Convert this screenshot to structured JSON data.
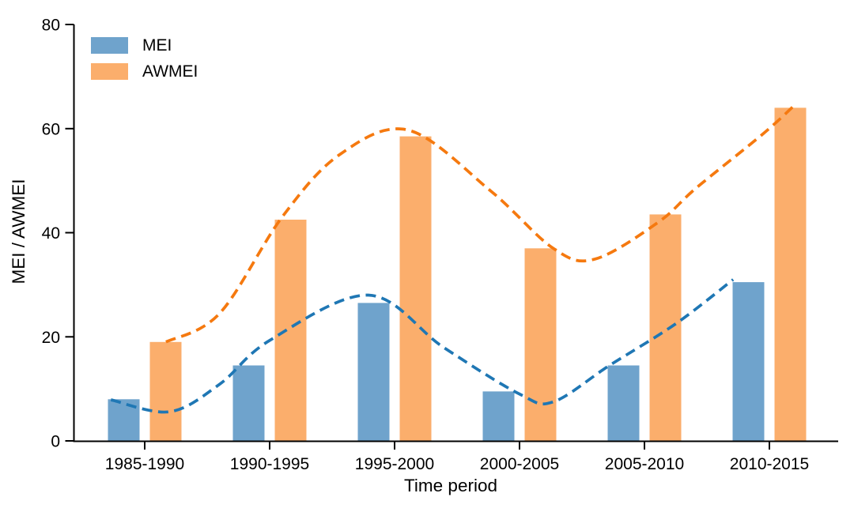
{
  "chart_data": {
    "type": "bar",
    "title": "",
    "xlabel": "Time period",
    "ylabel": "MEI / AWMEI",
    "ylim": [
      0,
      80
    ],
    "yticks": [
      0,
      20,
      40,
      60,
      80
    ],
    "grid": false,
    "legend_position": "upper-left",
    "categories": [
      "1985-1990",
      "1990-1995",
      "1995-2000",
      "2000-2005",
      "2005-2010",
      "2010-2015"
    ],
    "series": [
      {
        "name": "MEI",
        "values": [
          8,
          14.5,
          26.5,
          9.5,
          14.5,
          30.5
        ],
        "bar_color": "#6FA3CC",
        "line_color": "#1F77B4",
        "trend_style": "dashed",
        "trend": [
          [
            -0.27,
            7.9
          ],
          [
            0.2,
            5.6
          ],
          [
            0.6,
            10.9
          ],
          [
            1.0,
            19.3
          ],
          [
            1.79,
            28.0
          ],
          [
            2.39,
            18.0
          ],
          [
            3.0,
            9.0
          ],
          [
            3.27,
            7.5
          ],
          [
            3.72,
            14.5
          ],
          [
            4.25,
            22.5
          ],
          [
            4.71,
            31.0
          ]
        ]
      },
      {
        "name": "AWMEI",
        "values": [
          19,
          42.5,
          58.5,
          37,
          43.5,
          64
        ],
        "bar_color": "#FBAE6C",
        "line_color": "#F5790F",
        "trend_style": "dashed",
        "trend": [
          [
            0.17,
            19.0
          ],
          [
            0.6,
            24.5
          ],
          [
            1.1,
            43.0
          ],
          [
            1.56,
            55.0
          ],
          [
            2.11,
            59.7
          ],
          [
            2.77,
            48.0
          ],
          [
            3.27,
            37.0
          ],
          [
            3.6,
            34.9
          ],
          [
            4.11,
            42.0
          ],
          [
            4.41,
            48.5
          ],
          [
            4.95,
            59.0
          ],
          [
            5.21,
            64.7
          ]
        ]
      }
    ]
  }
}
